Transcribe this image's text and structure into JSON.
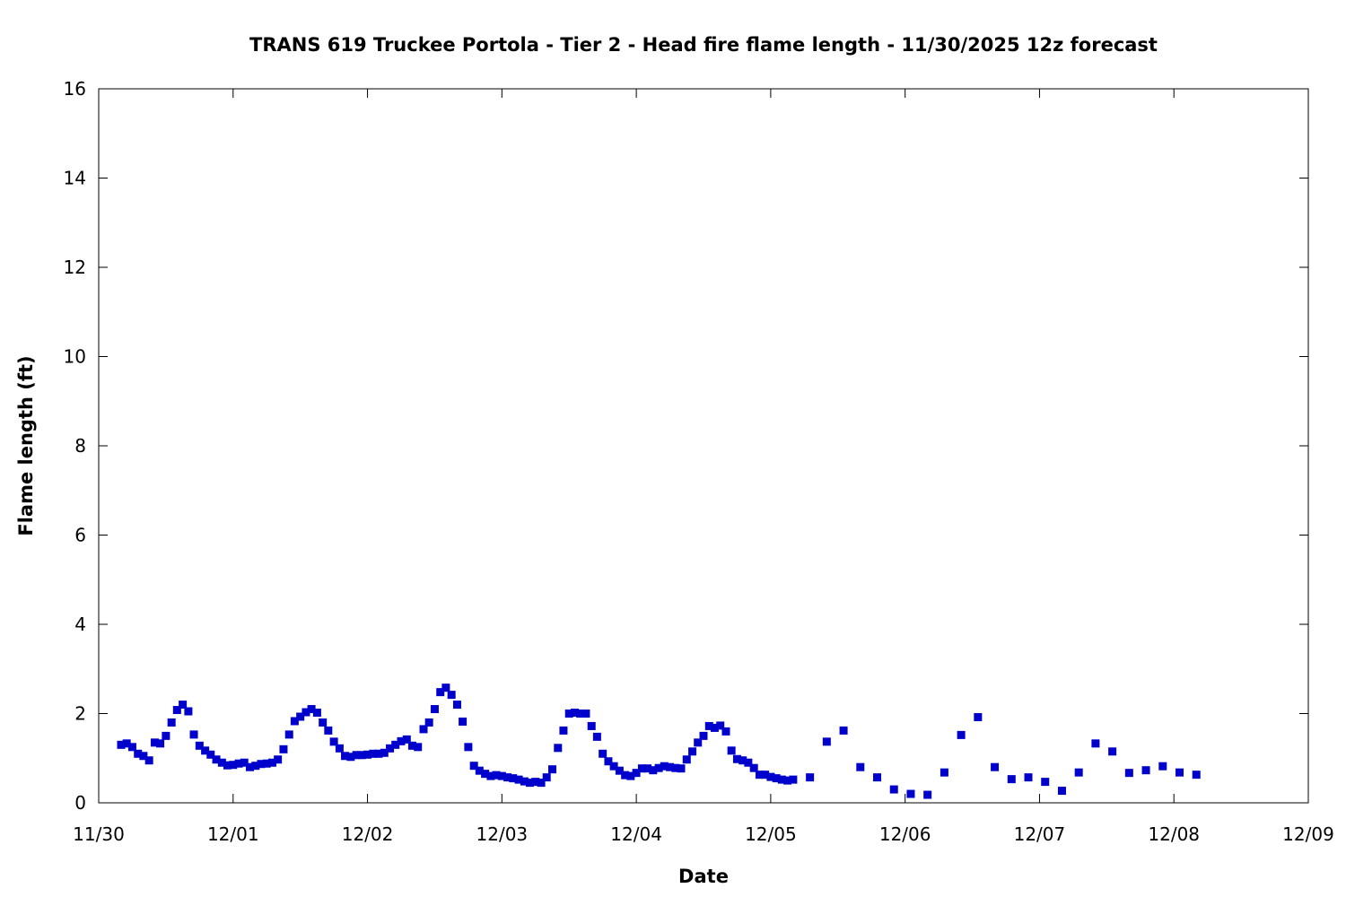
{
  "chart_data": {
    "type": "scatter",
    "title": "TRANS 619 Truckee Portola - Tier 2 - Head fire flame length - 11/30/2025 12z forecast",
    "xlabel": "Date",
    "ylabel": "Flame length (ft)",
    "x_unit": "days since 11/30 00z",
    "xlim": [
      0,
      9
    ],
    "ylim": [
      0,
      16
    ],
    "x_ticks": [
      0,
      1,
      2,
      3,
      4,
      5,
      6,
      7,
      8,
      9
    ],
    "x_tick_labels": [
      "11/30",
      "12/01",
      "12/02",
      "12/03",
      "12/04",
      "12/05",
      "12/06",
      "12/07",
      "12/08",
      "12/09"
    ],
    "y_ticks": [
      0,
      2,
      4,
      6,
      8,
      10,
      12,
      14,
      16
    ],
    "grid": false,
    "marker_color": "#0000cc",
    "points": [
      [
        0.167,
        1.3
      ],
      [
        0.208,
        1.33
      ],
      [
        0.25,
        1.25
      ],
      [
        0.292,
        1.1
      ],
      [
        0.333,
        1.05
      ],
      [
        0.375,
        0.95
      ],
      [
        0.417,
        1.35
      ],
      [
        0.458,
        1.33
      ],
      [
        0.5,
        1.5
      ],
      [
        0.542,
        1.8
      ],
      [
        0.583,
        2.08
      ],
      [
        0.625,
        2.2
      ],
      [
        0.667,
        2.05
      ],
      [
        0.708,
        1.53
      ],
      [
        0.75,
        1.28
      ],
      [
        0.792,
        1.17
      ],
      [
        0.833,
        1.08
      ],
      [
        0.875,
        0.97
      ],
      [
        0.917,
        0.9
      ],
      [
        0.958,
        0.84
      ],
      [
        1.0,
        0.85
      ],
      [
        1.042,
        0.88
      ],
      [
        1.083,
        0.9
      ],
      [
        1.125,
        0.8
      ],
      [
        1.167,
        0.83
      ],
      [
        1.208,
        0.87
      ],
      [
        1.25,
        0.88
      ],
      [
        1.292,
        0.9
      ],
      [
        1.333,
        0.97
      ],
      [
        1.375,
        1.2
      ],
      [
        1.417,
        1.53
      ],
      [
        1.458,
        1.83
      ],
      [
        1.5,
        1.93
      ],
      [
        1.542,
        2.03
      ],
      [
        1.583,
        2.1
      ],
      [
        1.625,
        2.02
      ],
      [
        1.667,
        1.8
      ],
      [
        1.708,
        1.62
      ],
      [
        1.75,
        1.37
      ],
      [
        1.792,
        1.22
      ],
      [
        1.833,
        1.05
      ],
      [
        1.875,
        1.03
      ],
      [
        1.917,
        1.07
      ],
      [
        1.958,
        1.07
      ],
      [
        2.0,
        1.08
      ],
      [
        2.042,
        1.1
      ],
      [
        2.083,
        1.1
      ],
      [
        2.125,
        1.12
      ],
      [
        2.167,
        1.22
      ],
      [
        2.208,
        1.3
      ],
      [
        2.25,
        1.38
      ],
      [
        2.292,
        1.42
      ],
      [
        2.333,
        1.28
      ],
      [
        2.375,
        1.25
      ],
      [
        2.417,
        1.65
      ],
      [
        2.458,
        1.8
      ],
      [
        2.5,
        2.1
      ],
      [
        2.542,
        2.48
      ],
      [
        2.583,
        2.58
      ],
      [
        2.625,
        2.42
      ],
      [
        2.667,
        2.2
      ],
      [
        2.708,
        1.82
      ],
      [
        2.75,
        1.25
      ],
      [
        2.792,
        0.83
      ],
      [
        2.833,
        0.72
      ],
      [
        2.875,
        0.65
      ],
      [
        2.917,
        0.6
      ],
      [
        2.958,
        0.62
      ],
      [
        3.0,
        0.6
      ],
      [
        3.042,
        0.57
      ],
      [
        3.083,
        0.55
      ],
      [
        3.125,
        0.52
      ],
      [
        3.167,
        0.48
      ],
      [
        3.208,
        0.45
      ],
      [
        3.25,
        0.47
      ],
      [
        3.292,
        0.45
      ],
      [
        3.333,
        0.57
      ],
      [
        3.375,
        0.75
      ],
      [
        3.417,
        1.23
      ],
      [
        3.458,
        1.62
      ],
      [
        3.5,
        2.0
      ],
      [
        3.542,
        2.02
      ],
      [
        3.583,
        2.0
      ],
      [
        3.625,
        2.0
      ],
      [
        3.667,
        1.72
      ],
      [
        3.708,
        1.48
      ],
      [
        3.75,
        1.1
      ],
      [
        3.792,
        0.93
      ],
      [
        3.833,
        0.82
      ],
      [
        3.875,
        0.72
      ],
      [
        3.917,
        0.62
      ],
      [
        3.958,
        0.6
      ],
      [
        4.0,
        0.67
      ],
      [
        4.042,
        0.77
      ],
      [
        4.083,
        0.77
      ],
      [
        4.125,
        0.73
      ],
      [
        4.167,
        0.78
      ],
      [
        4.208,
        0.82
      ],
      [
        4.25,
        0.8
      ],
      [
        4.292,
        0.78
      ],
      [
        4.333,
        0.77
      ],
      [
        4.375,
        0.97
      ],
      [
        4.417,
        1.15
      ],
      [
        4.458,
        1.35
      ],
      [
        4.5,
        1.5
      ],
      [
        4.542,
        1.72
      ],
      [
        4.583,
        1.68
      ],
      [
        4.625,
        1.73
      ],
      [
        4.667,
        1.6
      ],
      [
        4.708,
        1.17
      ],
      [
        4.75,
        0.98
      ],
      [
        4.792,
        0.95
      ],
      [
        4.833,
        0.9
      ],
      [
        4.875,
        0.78
      ],
      [
        4.917,
        0.63
      ],
      [
        4.958,
        0.63
      ],
      [
        5.0,
        0.58
      ],
      [
        5.042,
        0.55
      ],
      [
        5.083,
        0.52
      ],
      [
        5.125,
        0.5
      ],
      [
        5.167,
        0.52
      ],
      [
        5.292,
        0.57
      ],
      [
        5.417,
        1.37
      ],
      [
        5.542,
        1.62
      ],
      [
        5.667,
        0.8
      ],
      [
        5.792,
        0.57
      ],
      [
        5.917,
        0.3
      ],
      [
        6.042,
        0.2
      ],
      [
        6.167,
        0.18
      ],
      [
        6.292,
        0.68
      ],
      [
        6.417,
        1.52
      ],
      [
        6.542,
        1.92
      ],
      [
        6.667,
        0.8
      ],
      [
        6.792,
        0.53
      ],
      [
        6.917,
        0.57
      ],
      [
        7.042,
        0.47
      ],
      [
        7.167,
        0.27
      ],
      [
        7.292,
        0.68
      ],
      [
        7.417,
        1.33
      ],
      [
        7.542,
        1.15
      ],
      [
        7.667,
        0.67
      ],
      [
        7.792,
        0.73
      ],
      [
        7.917,
        0.82
      ],
      [
        8.042,
        0.68
      ],
      [
        8.167,
        0.63
      ]
    ]
  }
}
